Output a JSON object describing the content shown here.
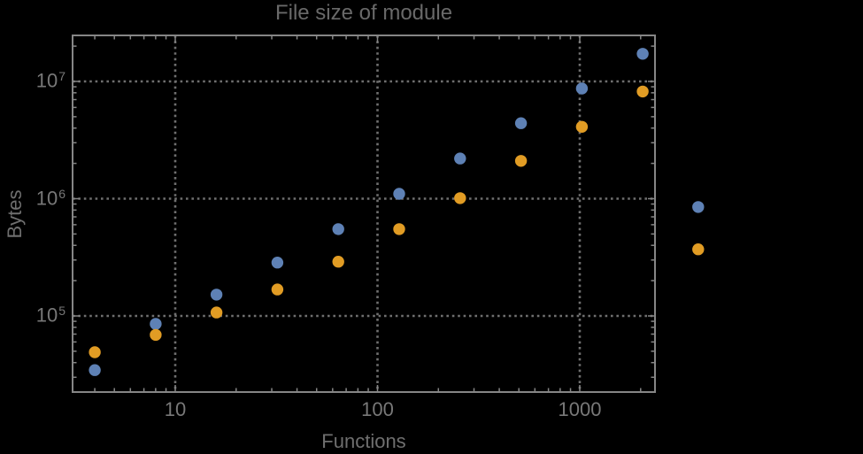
{
  "figure": {
    "background": "#000000"
  },
  "style": {
    "frame_color": "#868686",
    "grid_color": "#6f6f6f",
    "grid_style": "dotted",
    "title_color": "#696969",
    "axis_label_color": "#6f6f6f",
    "tick_label_color": "#787878",
    "series1_color": "#5E81B5",
    "series2_color": "#E19C24"
  },
  "chart_data": {
    "type": "scatter",
    "title": "File size of module",
    "xlabel": "Functions",
    "ylabel": "Bytes",
    "x_scale": "log",
    "y_scale": "log",
    "grid": true,
    "legend_position": "none",
    "xlim": [
      3.1,
      2350
    ],
    "ylim": [
      22400,
      24700000
    ],
    "x_ticks": [
      {
        "value": 10,
        "label": "10"
      },
      {
        "value": 100,
        "label": "100"
      },
      {
        "value": 1000,
        "label": "1000"
      }
    ],
    "y_ticks": [
      {
        "value": 100000,
        "base": "10",
        "exp": "5"
      },
      {
        "value": 1000000,
        "base": "10",
        "exp": "6"
      },
      {
        "value": 10000000,
        "base": "10",
        "exp": "7"
      }
    ],
    "series": [
      {
        "name": "blue",
        "color": "#5E81B5",
        "marker": "circle",
        "points": [
          [
            4,
            34500
          ],
          [
            8,
            85500
          ],
          [
            16,
            152000
          ],
          [
            32,
            285000
          ],
          [
            64,
            550000
          ],
          [
            128,
            1100000
          ],
          [
            256,
            2200000
          ],
          [
            512,
            4400000
          ],
          [
            1024,
            8700000
          ],
          [
            2048,
            17200000
          ],
          [
            3850,
            850000
          ]
        ]
      },
      {
        "name": "orange",
        "color": "#E19C24",
        "marker": "circle",
        "points": [
          [
            4,
            49000
          ],
          [
            8,
            69000
          ],
          [
            16,
            107000
          ],
          [
            32,
            168000
          ],
          [
            64,
            290000
          ],
          [
            128,
            550000
          ],
          [
            256,
            1010000
          ],
          [
            512,
            2100000
          ],
          [
            1024,
            4100000
          ],
          [
            2048,
            8200000
          ],
          [
            3850,
            370000
          ]
        ]
      }
    ]
  }
}
